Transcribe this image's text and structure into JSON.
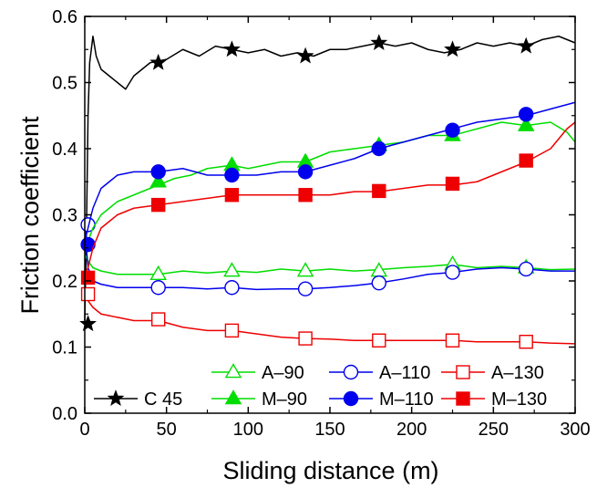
{
  "chart_data": {
    "type": "line",
    "title": "",
    "xlabel": "Sliding distance (m)",
    "ylabel": "Friction coefficient",
    "xlim": [
      0,
      300
    ],
    "ylim": [
      0.0,
      0.6
    ],
    "xticks": [
      "0",
      "50",
      "100",
      "150",
      "200",
      "250",
      "300"
    ],
    "yticks": [
      "0.0",
      "0.1",
      "0.2",
      "0.3",
      "0.4",
      "0.5",
      "0.6"
    ],
    "grid": false,
    "legend_position": "bottom-right",
    "series": [
      {
        "name": "C 45",
        "color": "#000000",
        "marker": "star",
        "filled": true,
        "x": [
          0,
          1,
          2,
          3,
          5,
          7,
          10,
          15,
          20,
          25,
          30,
          40,
          50,
          60,
          70,
          80,
          90,
          100,
          110,
          120,
          130,
          140,
          150,
          160,
          170,
          180,
          190,
          200,
          210,
          220,
          230,
          240,
          250,
          260,
          270,
          280,
          290,
          300
        ],
        "y": [
          0.14,
          0.27,
          0.45,
          0.53,
          0.57,
          0.54,
          0.52,
          0.51,
          0.5,
          0.49,
          0.51,
          0.53,
          0.535,
          0.55,
          0.54,
          0.555,
          0.55,
          0.545,
          0.55,
          0.54,
          0.545,
          0.54,
          0.55,
          0.55,
          0.555,
          0.56,
          0.555,
          0.56,
          0.55,
          0.545,
          0.55,
          0.56,
          0.555,
          0.56,
          0.555,
          0.565,
          0.57,
          0.56
        ],
        "marker_x": [
          2,
          45,
          90,
          135,
          180,
          225,
          270
        ],
        "marker_y": [
          0.135,
          0.53,
          0.55,
          0.54,
          0.56,
          0.55,
          0.555
        ]
      },
      {
        "name": "A–90",
        "color": "#00dd00",
        "marker": "triangle",
        "filled": false,
        "x": [
          0,
          2,
          5,
          10,
          20,
          30,
          45,
          60,
          75,
          90,
          105,
          120,
          135,
          150,
          165,
          180,
          195,
          210,
          225,
          240,
          255,
          270,
          285,
          300
        ],
        "y": [
          0.24,
          0.23,
          0.22,
          0.215,
          0.21,
          0.21,
          0.21,
          0.215,
          0.212,
          0.215,
          0.213,
          0.218,
          0.215,
          0.218,
          0.215,
          0.217,
          0.22,
          0.222,
          0.225,
          0.22,
          0.222,
          0.22,
          0.217,
          0.218
        ],
        "marker_x": [
          45,
          90,
          135,
          180,
          225,
          270
        ],
        "marker_y": [
          0.21,
          0.215,
          0.215,
          0.215,
          0.225,
          0.22
        ]
      },
      {
        "name": "A–110",
        "color": "#0000ee",
        "marker": "circle",
        "filled": false,
        "x": [
          0,
          2,
          5,
          10,
          20,
          30,
          45,
          60,
          75,
          90,
          105,
          120,
          135,
          150,
          165,
          180,
          195,
          210,
          225,
          240,
          255,
          270,
          285,
          300
        ],
        "y": [
          0.28,
          0.22,
          0.2,
          0.195,
          0.19,
          0.19,
          0.19,
          0.19,
          0.188,
          0.19,
          0.187,
          0.188,
          0.188,
          0.19,
          0.193,
          0.197,
          0.203,
          0.21,
          0.213,
          0.218,
          0.22,
          0.218,
          0.215,
          0.215
        ],
        "marker_x": [
          2,
          45,
          90,
          135,
          180,
          225,
          270
        ],
        "marker_y": [
          0.285,
          0.19,
          0.19,
          0.188,
          0.197,
          0.213,
          0.218
        ]
      },
      {
        "name": "A–130",
        "color": "#ee0000",
        "marker": "square",
        "filled": false,
        "x": [
          0,
          2,
          5,
          10,
          20,
          30,
          45,
          60,
          75,
          90,
          105,
          120,
          135,
          150,
          165,
          180,
          195,
          210,
          225,
          240,
          255,
          270,
          285,
          300
        ],
        "y": [
          0.18,
          0.17,
          0.16,
          0.15,
          0.145,
          0.14,
          0.14,
          0.13,
          0.125,
          0.125,
          0.12,
          0.115,
          0.113,
          0.112,
          0.11,
          0.11,
          0.11,
          0.11,
          0.11,
          0.108,
          0.108,
          0.108,
          0.106,
          0.105
        ],
        "marker_x": [
          2,
          45,
          90,
          135,
          180,
          225,
          270
        ],
        "marker_y": [
          0.18,
          0.142,
          0.125,
          0.113,
          0.11,
          0.11,
          0.108
        ]
      },
      {
        "name": "M–90",
        "color": "#00dd00",
        "marker": "triangle",
        "filled": true,
        "x": [
          0,
          2,
          5,
          10,
          15,
          20,
          30,
          40,
          45,
          55,
          65,
          75,
          90,
          100,
          110,
          120,
          135,
          150,
          165,
          180,
          195,
          210,
          225,
          240,
          255,
          270,
          285,
          295,
          300
        ],
        "y": [
          0.25,
          0.26,
          0.28,
          0.3,
          0.31,
          0.32,
          0.33,
          0.34,
          0.345,
          0.355,
          0.36,
          0.37,
          0.375,
          0.37,
          0.375,
          0.38,
          0.38,
          0.395,
          0.4,
          0.405,
          0.41,
          0.42,
          0.42,
          0.43,
          0.44,
          0.435,
          0.44,
          0.425,
          0.41
        ],
        "marker_x": [
          45,
          90,
          135,
          180,
          225,
          270
        ],
        "marker_y": [
          0.35,
          0.375,
          0.38,
          0.405,
          0.42,
          0.435
        ]
      },
      {
        "name": "M–110",
        "color": "#0000ee",
        "marker": "circle",
        "filled": true,
        "x": [
          0,
          2,
          5,
          10,
          15,
          20,
          30,
          45,
          60,
          75,
          90,
          105,
          120,
          135,
          150,
          165,
          180,
          195,
          210,
          225,
          240,
          255,
          270,
          285,
          300
        ],
        "y": [
          0.26,
          0.28,
          0.31,
          0.34,
          0.35,
          0.36,
          0.365,
          0.365,
          0.37,
          0.36,
          0.36,
          0.36,
          0.365,
          0.365,
          0.375,
          0.385,
          0.4,
          0.41,
          0.42,
          0.43,
          0.44,
          0.445,
          0.45,
          0.46,
          0.47
        ],
        "marker_x": [
          2,
          45,
          90,
          135,
          180,
          225,
          270
        ],
        "marker_y": [
          0.255,
          0.365,
          0.36,
          0.365,
          0.4,
          0.428,
          0.452
        ]
      },
      {
        "name": "M–130",
        "color": "#ee0000",
        "marker": "square",
        "filled": true,
        "x": [
          0,
          2,
          5,
          10,
          15,
          20,
          30,
          45,
          60,
          75,
          90,
          105,
          120,
          135,
          150,
          165,
          180,
          195,
          210,
          225,
          240,
          255,
          270,
          285,
          295,
          300
        ],
        "y": [
          0.21,
          0.22,
          0.25,
          0.28,
          0.29,
          0.3,
          0.31,
          0.315,
          0.32,
          0.325,
          0.33,
          0.33,
          0.33,
          0.33,
          0.33,
          0.335,
          0.335,
          0.34,
          0.345,
          0.345,
          0.35,
          0.365,
          0.38,
          0.4,
          0.43,
          0.44
        ],
        "marker_x": [
          2,
          45,
          90,
          135,
          180,
          225,
          270
        ],
        "marker_y": [
          0.205,
          0.315,
          0.33,
          0.33,
          0.336,
          0.347,
          0.382
        ]
      }
    ],
    "legend_rows": [
      [
        "A–90",
        "A–110",
        "A–130"
      ],
      [
        "C 45",
        "M–90",
        "M–110",
        "M–130"
      ]
    ]
  }
}
